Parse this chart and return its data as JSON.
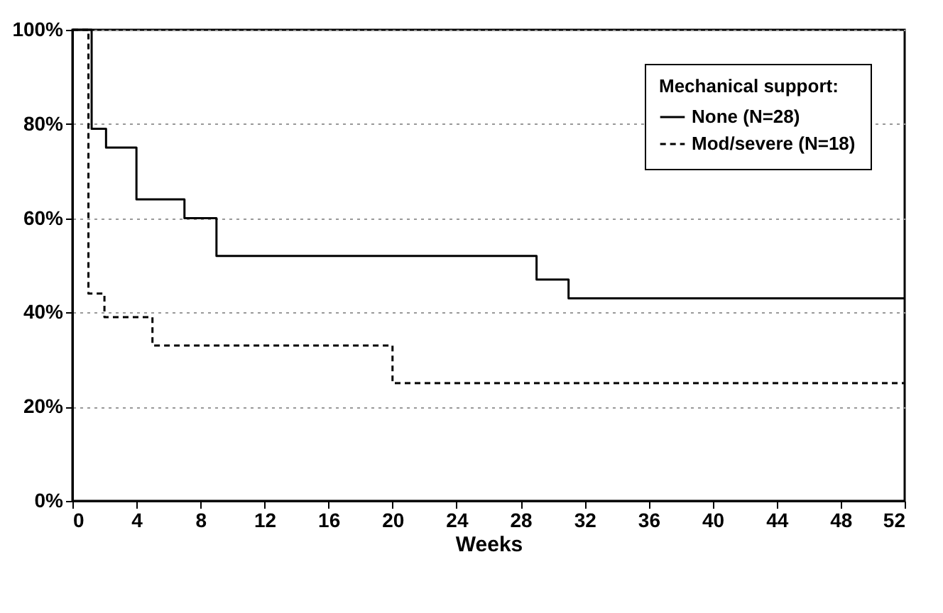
{
  "chart_data": {
    "type": "step",
    "xlabel": "Weeks",
    "legend_title": "Mechanical support:",
    "legend": "top right",
    "grid": "y",
    "xlim": [
      0,
      52
    ],
    "xticks": [
      0,
      4,
      8,
      12,
      16,
      20,
      24,
      28,
      32,
      36,
      40,
      44,
      48,
      52
    ],
    "ylim": [
      0,
      100
    ],
    "yticks": [
      {
        "value": 0,
        "label": "0%"
      },
      {
        "value": 20,
        "label": "20%"
      },
      {
        "value": 40,
        "label": "40%"
      },
      {
        "value": 60,
        "label": "60%"
      },
      {
        "value": 80,
        "label": "80%"
      },
      {
        "value": 100,
        "label": "100%"
      }
    ],
    "series": [
      {
        "name": "None (N=28)",
        "color": "#000000",
        "line_style": "solid",
        "x": [
          0,
          1.2,
          2.1,
          4,
          7,
          9,
          29,
          31,
          52
        ],
        "values": [
          100,
          79,
          75,
          64,
          60,
          52,
          47,
          43,
          43
        ]
      },
      {
        "name": "Mod/severe (N=18)",
        "color": "#000000",
        "line_style": "dashed",
        "x": [
          0,
          1,
          2,
          5,
          20,
          52
        ],
        "values": [
          100,
          44,
          39,
          33,
          25,
          25
        ]
      }
    ]
  }
}
